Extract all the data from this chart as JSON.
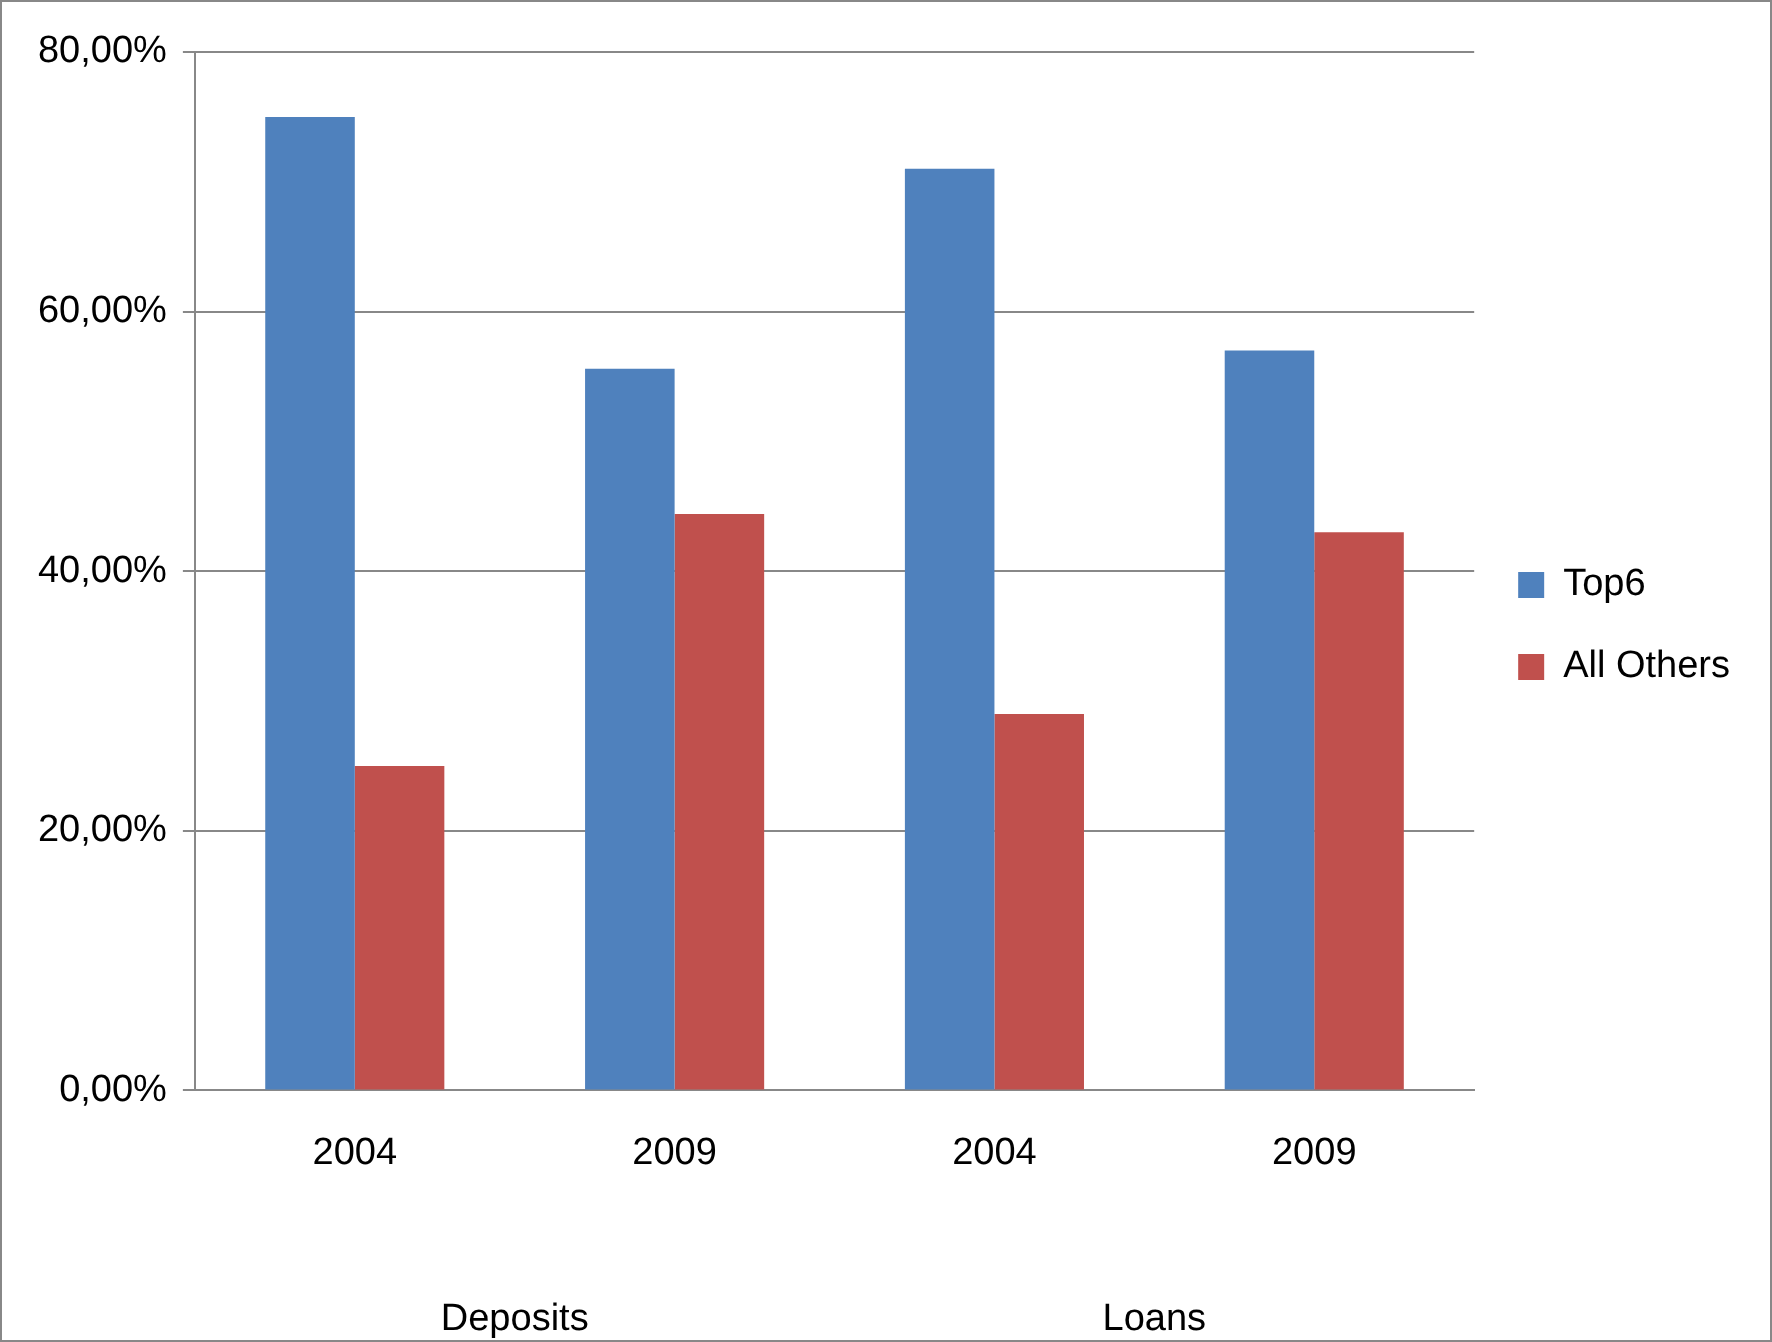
{
  "chart_data": {
    "type": "bar",
    "categories": [
      "2004",
      "2009",
      "2004",
      "2009"
    ],
    "series": [
      {
        "name": "Top6",
        "color": "#4f81bd",
        "values": [
          75,
          55.6,
          71,
          57
        ]
      },
      {
        "name": "All Others",
        "color": "#c0504d",
        "values": [
          25,
          44.4,
          29,
          43
        ]
      }
    ],
    "ylim": [
      0,
      80
    ],
    "yticks": [
      {
        "value": 0,
        "label": "0,00%"
      },
      {
        "value": 20,
        "label": "20,00%"
      },
      {
        "value": 40,
        "label": "40,00%"
      },
      {
        "value": 60,
        "label": "60,00%"
      },
      {
        "value": 80,
        "label": "80,00%"
      }
    ],
    "grid": "y",
    "legend": "right",
    "annotations": [
      "Deposits",
      "Loans"
    ]
  }
}
